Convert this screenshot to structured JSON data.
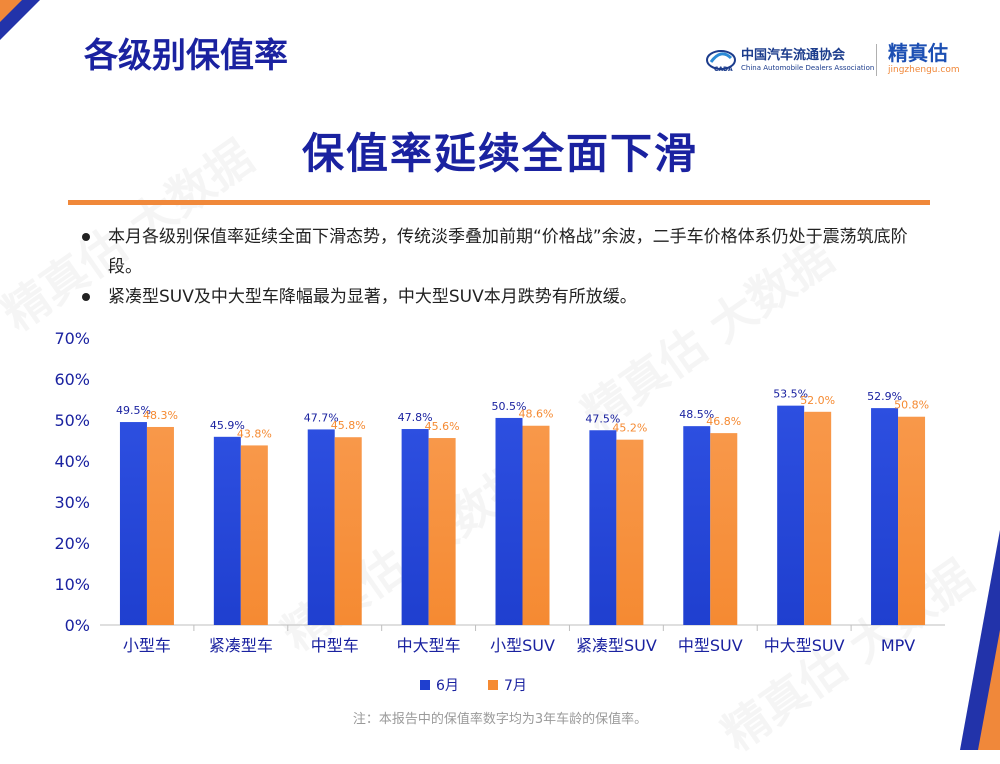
{
  "section_title": "各级别保值率",
  "logo": {
    "assoc_cn": "中国汽车流通协会",
    "assoc_en": "China Automobile Dealers Association",
    "brand_cn": "精真估",
    "brand_url": "jingzhengu.com"
  },
  "headline": "保值率延续全面下滑",
  "bullets": [
    "本月各级别保值率延续全面下滑态势，传统淡季叠加前期“价格战”余波，二手车价格体系仍处于震荡筑底阶段。",
    "紧凑型SUV及中大型车降幅最为显著，中大型SUV本月跌势有所放缓。"
  ],
  "footnote": "注：本报告中的保值率数字均为3年车龄的保值率。",
  "watermark_text": "精真估 大数据",
  "colors": {
    "june": "#1f3fcf",
    "july": "#f58a32",
    "title": "#1a22a0",
    "accent": "#f0883a"
  },
  "chart_data": {
    "type": "bar",
    "categories": [
      "小型车",
      "紧凑型车",
      "中型车",
      "中大型车",
      "小型SUV",
      "紧凑型SUV",
      "中型SUV",
      "中大型SUV",
      "MPV"
    ],
    "series": [
      {
        "name": "6月",
        "values": [
          49.5,
          45.9,
          47.7,
          47.8,
          50.5,
          47.5,
          48.5,
          53.5,
          52.9
        ]
      },
      {
        "name": "7月",
        "values": [
          48.3,
          43.8,
          45.8,
          45.6,
          48.6,
          45.2,
          46.8,
          52.0,
          50.8
        ]
      }
    ],
    "y_ticks": [
      "0%",
      "10%",
      "20%",
      "30%",
      "40%",
      "50%",
      "60%",
      "70%"
    ],
    "ylim": [
      0,
      70
    ],
    "value_format": "%",
    "grid": false,
    "legend_position": "bottom"
  }
}
